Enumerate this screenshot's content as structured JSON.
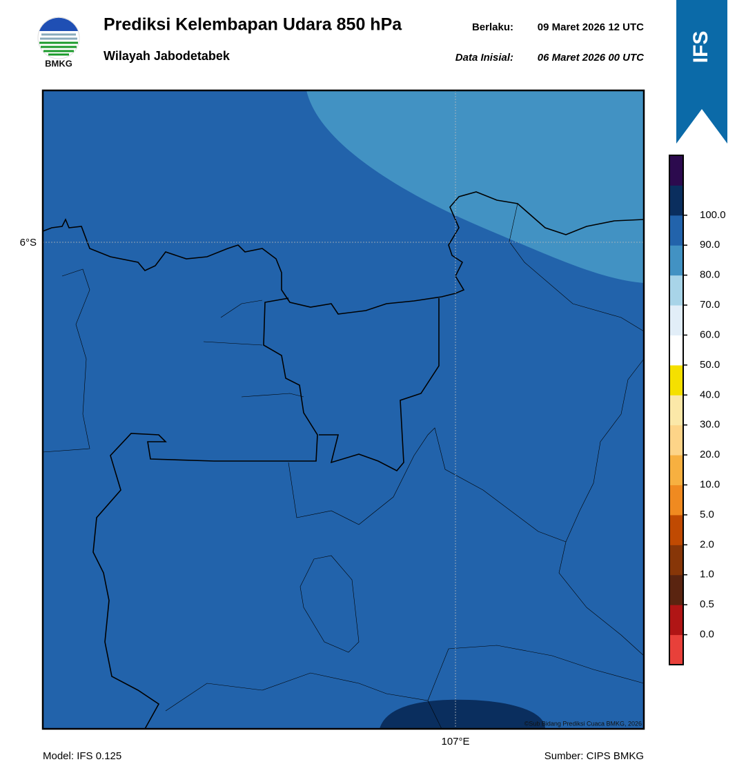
{
  "header": {
    "title": "Prediksi Kelembapan Udara 850 hPa",
    "subtitle": "Wilayah Jabodetabek",
    "valid_label": "Berlaku:",
    "valid_value": "09 Maret 2026 12 UTC",
    "init_label": "Data Inisial:",
    "init_value": "06 Maret 2026 00 UTC"
  },
  "logo": {
    "text": "BMKG"
  },
  "badge": {
    "text": "IFS"
  },
  "map": {
    "lat_label": "6°S",
    "lon_label": "107°E",
    "credit": "©Sub Bidang Prediksi Cuaca BMKG, 2026"
  },
  "colorbar": {
    "labels": [
      "0.0",
      "0.5",
      "1.0",
      "2.0",
      "5.0",
      "10.0",
      "20.0",
      "30.0",
      "40.0",
      "50.0",
      "60.0",
      "70.0",
      "80.0",
      "90.0",
      "100.0"
    ],
    "colors": [
      "#e8403a",
      "#b01515",
      "#5a2410",
      "#873608",
      "#c04a02",
      "#f08a20",
      "#f7b040",
      "#fdd488",
      "#fbe8a8",
      "#f5e000",
      "#ffffff",
      "#e2eef8",
      "#a8d4e8",
      "#4292c3",
      "#2263ab",
      "#0a2e5e",
      "#2c0a4e"
    ]
  },
  "footer": {
    "model": "Model: IFS 0.125",
    "source": "Sumber: CIPS BMKG"
  }
}
